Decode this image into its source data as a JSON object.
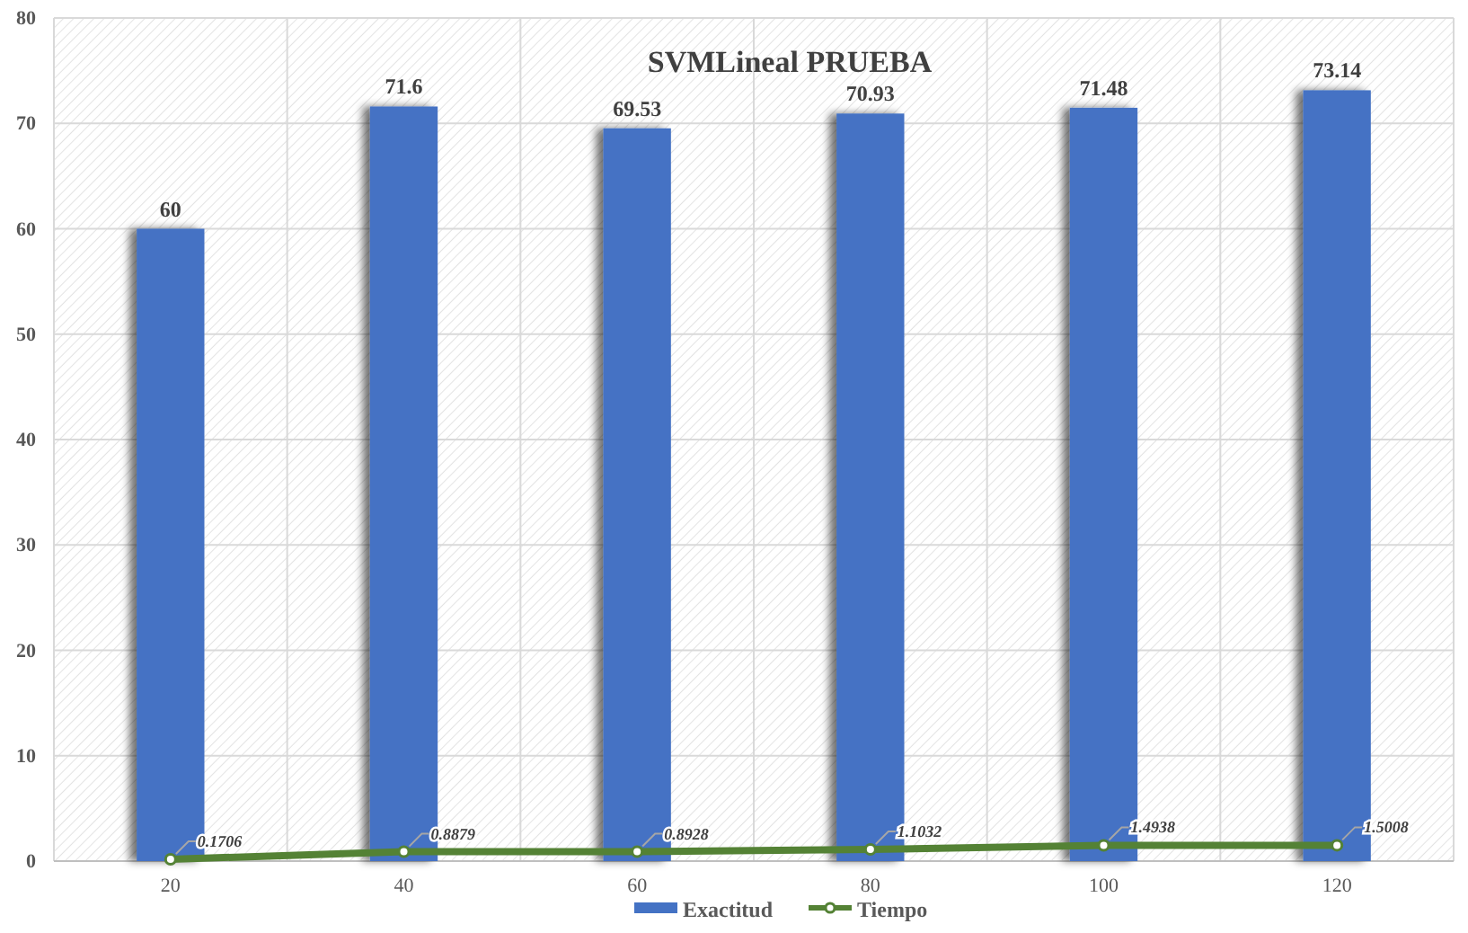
{
  "chart_data": {
    "type": "bar",
    "title": "SVMLineal PRUEBA",
    "categories": [
      "20",
      "40",
      "60",
      "80",
      "100",
      "120"
    ],
    "series": [
      {
        "name": "Exactitud",
        "color": "#4472c4",
        "values": [
          60,
          71.6,
          69.53,
          70.93,
          71.48,
          73.14
        ]
      },
      {
        "name": "Tiempo",
        "type": "line",
        "color": "#548235",
        "marker": "circle",
        "values": [
          0.1706,
          0.8879,
          0.8928,
          1.1032,
          1.4938,
          1.5008
        ]
      }
    ],
    "ylim": [
      0,
      80
    ],
    "yticks": [
      0,
      10,
      20,
      30,
      40,
      50,
      60,
      70,
      80
    ],
    "grid": true,
    "legend": "bottom",
    "data_labels": true
  }
}
